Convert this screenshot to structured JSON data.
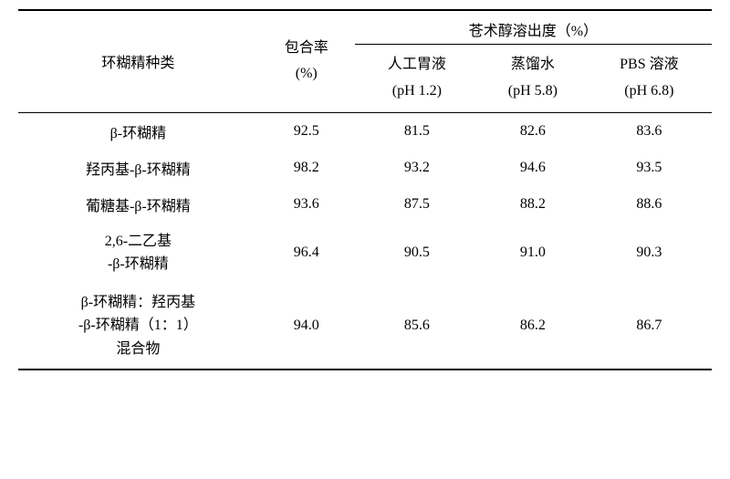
{
  "headers": {
    "col1": "环糊精种类",
    "col2_line1": "包合率",
    "col2_line2": "(%)",
    "group_header": "苍术醇溶出度（%）",
    "sub1_line1": "人工胃液",
    "sub1_line2": "(pH 1.2)",
    "sub2_line1": "蒸馏水",
    "sub2_line2": "(pH 5.8)",
    "sub3_line1": "PBS 溶液",
    "sub3_line2": "(pH 6.8)"
  },
  "rows": [
    {
      "type": "single",
      "label": "β-环糊精",
      "v1": "92.5",
      "v2": "81.5",
      "v3": "82.6",
      "v4": "83.6"
    },
    {
      "type": "single",
      "label": "羟丙基-β-环糊精",
      "v1": "98.2",
      "v2": "93.2",
      "v3": "94.6",
      "v4": "93.5"
    },
    {
      "type": "single",
      "label": "葡糖基-β-环糊精",
      "v1": "93.6",
      "v2": "87.5",
      "v3": "88.2",
      "v4": "88.6"
    },
    {
      "type": "multi",
      "line1": "2,6-二乙基",
      "line2": "-β-环糊精",
      "v1": "96.4",
      "v2": "90.5",
      "v3": "91.0",
      "v4": "90.3"
    },
    {
      "type": "multi3",
      "line1": "β-环糊精：羟丙基",
      "line2": "-β-环糊精（1：1）",
      "line3": "混合物",
      "v1": "94.0",
      "v2": "85.6",
      "v3": "86.2",
      "v4": "86.7"
    }
  ]
}
